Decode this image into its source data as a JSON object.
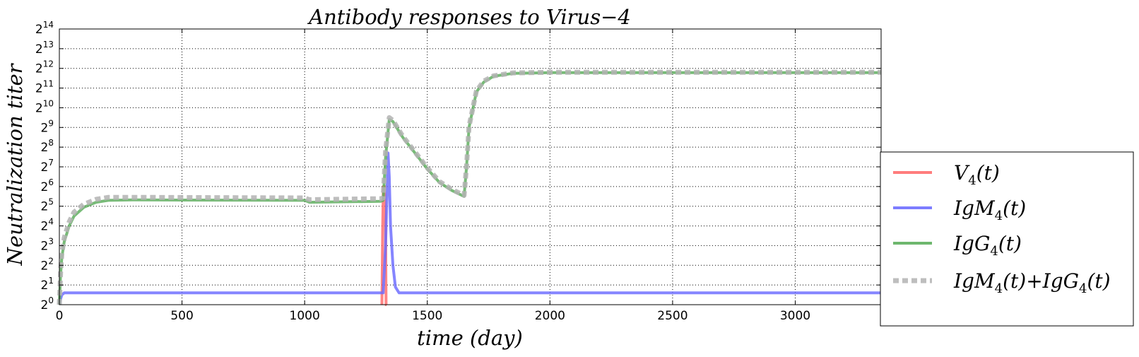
{
  "chart_data": {
    "type": "line",
    "title": "Antibody responses to Virus−4",
    "xlabel": "time (day)",
    "ylabel": "Neutralization  titer",
    "xlim": [
      0,
      3350
    ],
    "ylim_log2": [
      0,
      14
    ],
    "y_scale": "log2",
    "grid": true,
    "legend_placement": "right, outside plot",
    "x_ticks": [
      0,
      500,
      1000,
      1500,
      2000,
      2500,
      3000
    ],
    "y_ticks_exponents": [
      0,
      1,
      2,
      3,
      4,
      5,
      6,
      7,
      8,
      9,
      10,
      11,
      12,
      13,
      14
    ],
    "y_tick_base": "2",
    "x_unit_note": "x values in days; y values are log2 of titer",
    "series": [
      {
        "name": "V4(t)",
        "name_base": "V",
        "name_sub": "4",
        "name_tail": "(t)",
        "color": "#ff6666",
        "style": "solid",
        "points": [
          [
            1315,
            0
          ],
          [
            1318,
            4
          ],
          [
            1321,
            6
          ],
          [
            1326,
            6
          ],
          [
            1330,
            4
          ],
          [
            1332,
            0
          ],
          [
            1334,
            0
          ]
        ]
      },
      {
        "name": "IgM4(t)",
        "name_base": "IgM",
        "name_sub": "4",
        "name_tail": "(t)",
        "color": "#6666ff",
        "style": "solid",
        "points": [
          [
            0,
            0
          ],
          [
            3,
            0.2
          ],
          [
            10,
            0.5
          ],
          [
            20,
            0.6
          ],
          [
            40,
            0.6
          ],
          [
            1000,
            0.6
          ],
          [
            1320,
            0.6
          ],
          [
            1330,
            3
          ],
          [
            1340,
            7.7
          ],
          [
            1345,
            6.5
          ],
          [
            1350,
            4
          ],
          [
            1360,
            2
          ],
          [
            1370,
            0.9
          ],
          [
            1385,
            0.6
          ],
          [
            3350,
            0.6
          ]
        ]
      },
      {
        "name": "IgG4(t)",
        "name_base": "IgG",
        "name_sub": "4",
        "name_tail": "(t)",
        "color": "#55aa55",
        "style": "solid",
        "points": [
          [
            0,
            0
          ],
          [
            5,
            1.5
          ],
          [
            10,
            2.4
          ],
          [
            20,
            3.2
          ],
          [
            40,
            4.0
          ],
          [
            60,
            4.5
          ],
          [
            100,
            4.95
          ],
          [
            150,
            5.2
          ],
          [
            200,
            5.3
          ],
          [
            300,
            5.32
          ],
          [
            1000,
            5.3
          ],
          [
            1020,
            5.2
          ],
          [
            1310,
            5.25
          ],
          [
            1320,
            5.3
          ],
          [
            1330,
            7.5
          ],
          [
            1345,
            9.4
          ],
          [
            1360,
            9.3
          ],
          [
            1400,
            8.5
          ],
          [
            1450,
            7.7
          ],
          [
            1500,
            6.9
          ],
          [
            1550,
            6.2
          ],
          [
            1600,
            5.8
          ],
          [
            1650,
            5.5
          ],
          [
            1660,
            7.0
          ],
          [
            1670,
            9.0
          ],
          [
            1700,
            10.8
          ],
          [
            1730,
            11.3
          ],
          [
            1770,
            11.6
          ],
          [
            1850,
            11.75
          ],
          [
            2000,
            11.78
          ],
          [
            3350,
            11.78
          ]
        ]
      },
      {
        "name": "IgM4(t) + IgG4(t)",
        "name_parts": [
          "IgM",
          "4",
          "(t)+IgG",
          "4",
          "(t)"
        ],
        "color": "#b3b3b3",
        "style": "dashed",
        "points": [
          [
            0,
            0
          ],
          [
            5,
            1.6
          ],
          [
            10,
            2.6
          ],
          [
            20,
            3.4
          ],
          [
            40,
            4.2
          ],
          [
            60,
            4.7
          ],
          [
            100,
            5.1
          ],
          [
            150,
            5.35
          ],
          [
            200,
            5.45
          ],
          [
            300,
            5.45
          ],
          [
            1000,
            5.42
          ],
          [
            1020,
            5.33
          ],
          [
            1310,
            5.38
          ],
          [
            1320,
            5.42
          ],
          [
            1330,
            7.8
          ],
          [
            1345,
            9.5
          ],
          [
            1360,
            9.35
          ],
          [
            1400,
            8.55
          ],
          [
            1450,
            7.75
          ],
          [
            1500,
            6.95
          ],
          [
            1550,
            6.25
          ],
          [
            1600,
            5.85
          ],
          [
            1650,
            5.55
          ],
          [
            1660,
            7.05
          ],
          [
            1670,
            9.05
          ],
          [
            1700,
            10.85
          ],
          [
            1730,
            11.35
          ],
          [
            1770,
            11.62
          ],
          [
            1850,
            11.77
          ],
          [
            2000,
            11.8
          ],
          [
            3350,
            11.8
          ]
        ]
      }
    ]
  }
}
